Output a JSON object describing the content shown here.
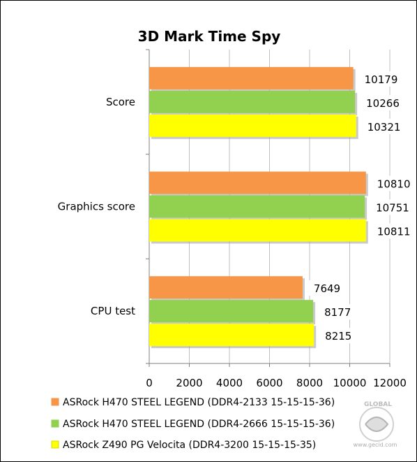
{
  "chart_data": {
    "type": "bar",
    "orientation": "horizontal",
    "title": "3D Mark Time Spy",
    "categories": [
      "Score",
      "Graphics score",
      "CPU test"
    ],
    "series": [
      {
        "name": "ASRock H470 STEEL LEGEND (DDR4-2133 15-15-15-36)",
        "color": "#F79646",
        "values": [
          10179,
          10810,
          7649
        ]
      },
      {
        "name": "ASRock H470 STEEL LEGEND (DDR4-2666 15-15-15-36)",
        "color": "#92D050",
        "values": [
          10266,
          10751,
          8177
        ]
      },
      {
        "name": "ASRock Z490 PG Velocita (DDR4-3200 15-15-15-35)",
        "color": "#FFFF00",
        "values": [
          10321,
          10811,
          8215
        ]
      }
    ],
    "xlim": [
      0,
      12000
    ],
    "xticks": [
      "0",
      "2000",
      "4000",
      "6000",
      "8000",
      "10000",
      "12000"
    ],
    "grid": true,
    "legend_position": "bottom"
  },
  "watermark": {
    "top_text": "GLOBAL",
    "text": "www.gecid.com",
    "icon": "gecid-logo-icon"
  }
}
